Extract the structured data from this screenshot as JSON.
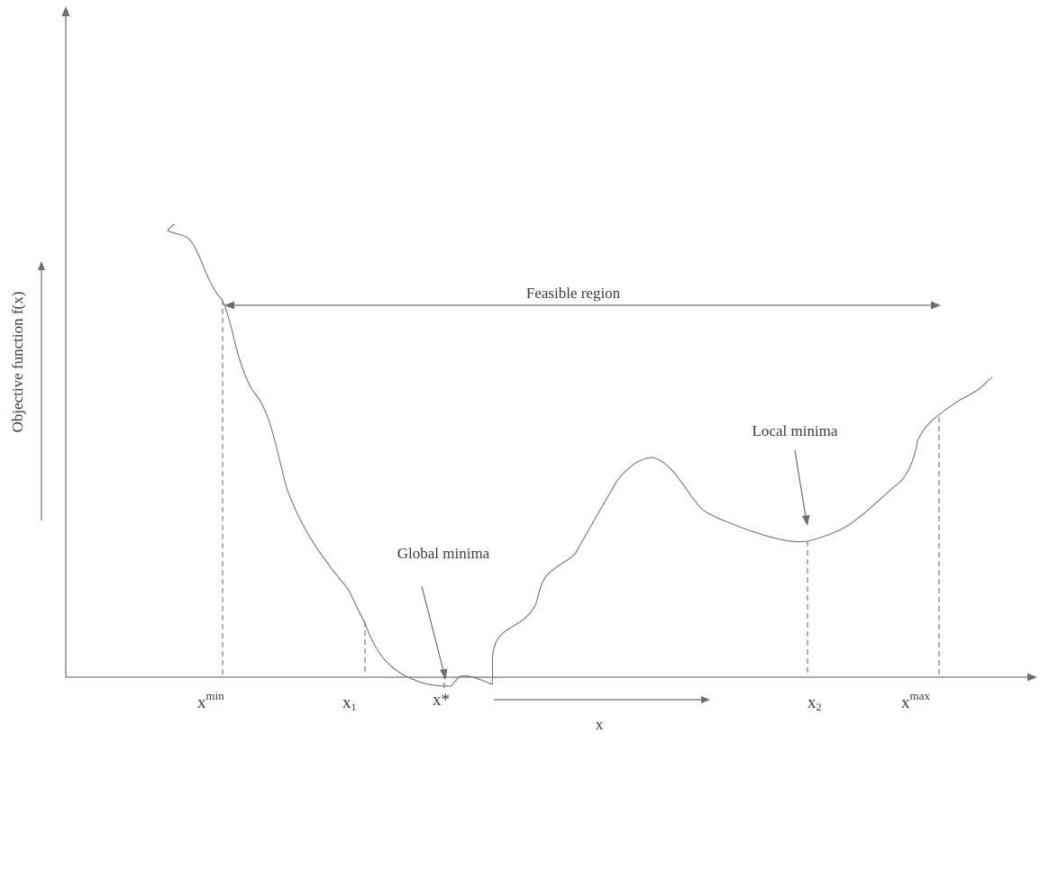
{
  "labels": {
    "y_axis": "Objective function f(x)",
    "x_axis": "x",
    "feasible_region": "Feasible region",
    "global_minima": "Global minima",
    "local_minima": "Local minima"
  },
  "ticks": {
    "x_min": {
      "base": "x",
      "sup": "min"
    },
    "x1": {
      "base": "x",
      "sub": "1"
    },
    "x_star": {
      "text": "x*"
    },
    "x2": {
      "base": "x",
      "sub": "2"
    },
    "x_max": {
      "base": "x",
      "sup": "max"
    }
  },
  "colors": {
    "axis": "#7a7a7a",
    "curve": "#6a6a6a",
    "text": "#3c3c3c"
  }
}
